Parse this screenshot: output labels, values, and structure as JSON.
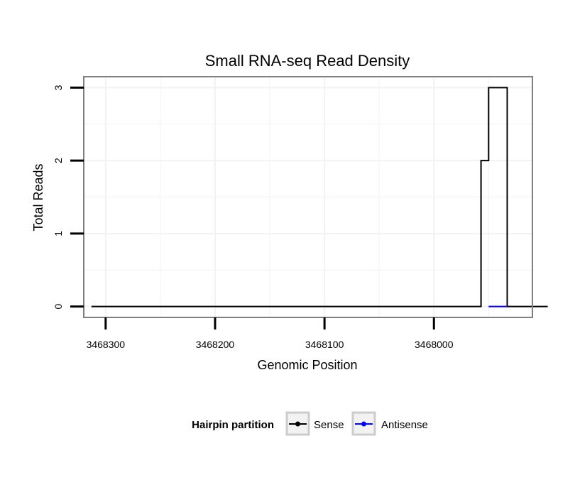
{
  "chart_data": {
    "type": "line",
    "title": "Small RNA-seq Read Density",
    "xlabel": "Genomic Position",
    "ylabel": "Total Reads",
    "x_reversed": true,
    "xlim": [
      3468320,
      3467910
    ],
    "ylim": [
      -0.15,
      3.15
    ],
    "x_ticks": [
      3468300,
      3468200,
      3468100,
      3468000
    ],
    "x_tick_labels": [
      "3468300",
      "3468200",
      "3468100",
      "3468000"
    ],
    "y_ticks": [
      0,
      1,
      2,
      3
    ],
    "y_tick_labels": [
      "0",
      "1",
      "2",
      "3"
    ],
    "grid": true,
    "legend": {
      "title": "Hairpin partition",
      "position": "bottom",
      "entries": [
        {
          "name": "Sense",
          "color": "#000000"
        },
        {
          "name": "Antisense",
          "color": "#0000ff"
        }
      ]
    },
    "series": [
      {
        "name": "Sense",
        "color": "#000000",
        "x": [
          3468313,
          3467957,
          3467957,
          3467955,
          3467955,
          3467950,
          3467950,
          3467933,
          3467933,
          3467896
        ],
        "y": [
          0,
          0,
          2,
          2,
          2,
          2,
          3,
          3,
          0,
          0
        ]
      },
      {
        "name": "Antisense",
        "color": "#0000ff",
        "x": [
          3467950,
          3467933
        ],
        "y": [
          0,
          0
        ]
      }
    ]
  }
}
